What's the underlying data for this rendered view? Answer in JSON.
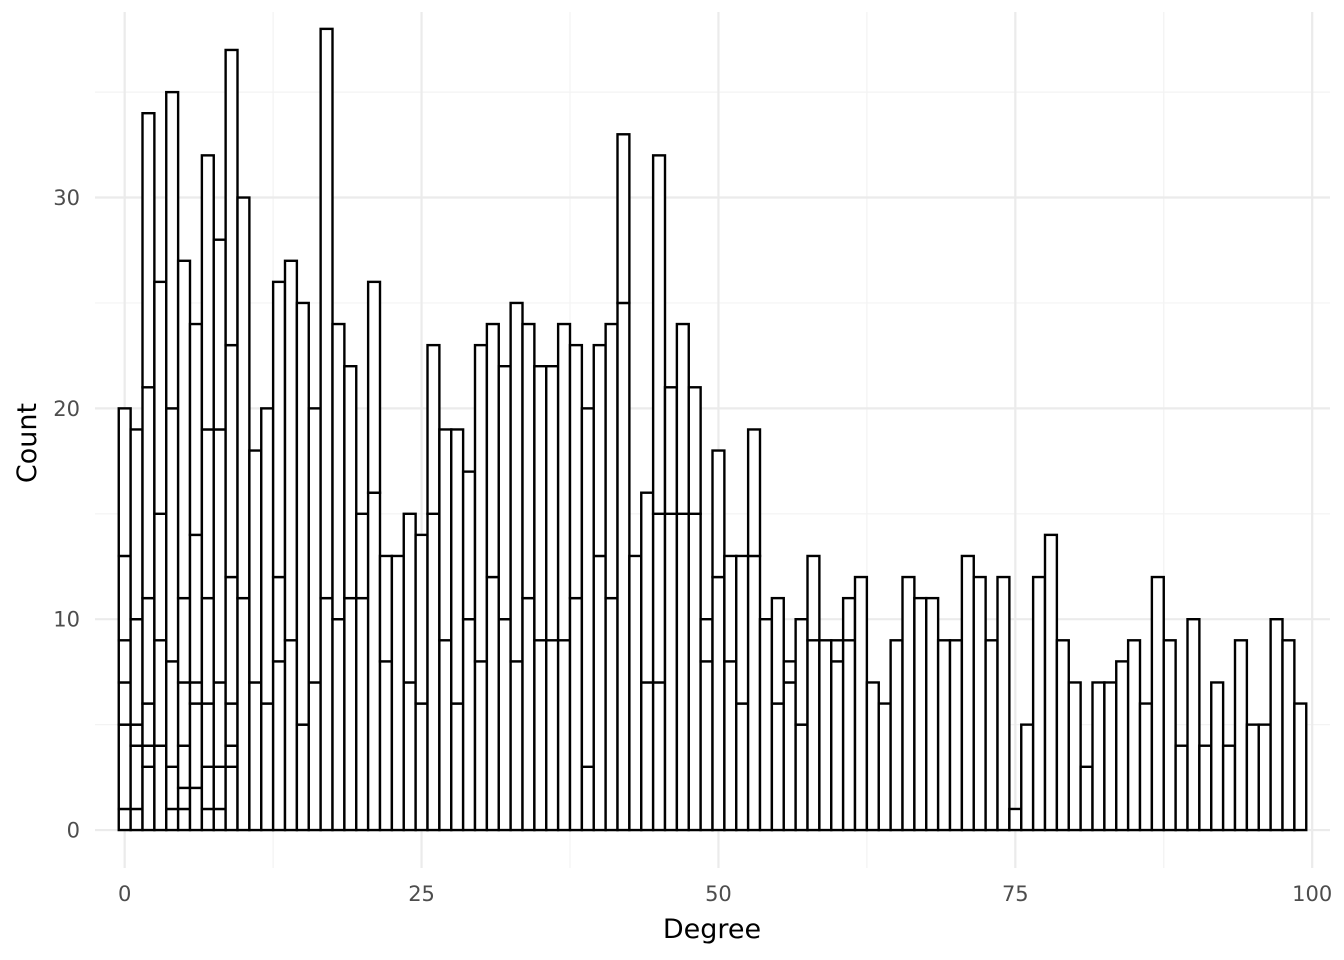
{
  "chart_data": {
    "type": "bar",
    "subtype": "histogram-stacked-outline",
    "title": "",
    "xlabel": "Degree",
    "ylabel": "Count",
    "xlim": [
      -2.5,
      101.5
    ],
    "ylim": [
      -1.8,
      38.8
    ],
    "x_ticks": [
      0,
      25,
      50,
      75,
      100
    ],
    "y_ticks": [
      0,
      10,
      20,
      30
    ],
    "grid": true,
    "legend": "none",
    "bar_fill": "#ffffff",
    "bar_stroke": "#000000",
    "bin_width": 1,
    "bins": [
      {
        "x": 0,
        "stack": [
          1,
          5,
          7,
          9,
          13,
          20
        ]
      },
      {
        "x": 1,
        "stack": [
          1,
          4,
          5,
          10,
          19
        ]
      },
      {
        "x": 2,
        "stack": [
          3,
          4,
          6,
          11,
          21,
          34
        ]
      },
      {
        "x": 3,
        "stack": [
          4,
          9,
          15,
          26
        ]
      },
      {
        "x": 4,
        "stack": [
          1,
          3,
          8,
          20,
          35
        ]
      },
      {
        "x": 5,
        "stack": [
          1,
          2,
          4,
          7,
          11,
          27
        ]
      },
      {
        "x": 6,
        "stack": [
          2,
          6,
          7,
          14,
          24
        ]
      },
      {
        "x": 7,
        "stack": [
          1,
          3,
          6,
          11,
          19,
          32
        ]
      },
      {
        "x": 8,
        "stack": [
          1,
          3,
          7,
          19,
          28
        ]
      },
      {
        "x": 9,
        "stack": [
          3,
          4,
          6,
          12,
          23,
          37
        ]
      },
      {
        "x": 10,
        "stack": [
          11,
          30
        ]
      },
      {
        "x": 11,
        "stack": [
          7,
          18
        ]
      },
      {
        "x": 12,
        "stack": [
          6,
          20
        ]
      },
      {
        "x": 13,
        "stack": [
          8,
          12,
          26
        ]
      },
      {
        "x": 14,
        "stack": [
          9,
          27
        ]
      },
      {
        "x": 15,
        "stack": [
          5,
          25
        ]
      },
      {
        "x": 16,
        "stack": [
          7,
          20
        ]
      },
      {
        "x": 17,
        "stack": [
          11,
          38
        ]
      },
      {
        "x": 18,
        "stack": [
          10,
          24
        ]
      },
      {
        "x": 19,
        "stack": [
          11,
          22
        ]
      },
      {
        "x": 20,
        "stack": [
          11,
          15
        ]
      },
      {
        "x": 21,
        "stack": [
          16,
          26
        ]
      },
      {
        "x": 22,
        "stack": [
          8,
          13
        ]
      },
      {
        "x": 23,
        "stack": [
          13
        ]
      },
      {
        "x": 24,
        "stack": [
          7,
          15
        ]
      },
      {
        "x": 25,
        "stack": [
          6,
          14
        ]
      },
      {
        "x": 26,
        "stack": [
          15,
          23
        ]
      },
      {
        "x": 27,
        "stack": [
          9,
          19
        ]
      },
      {
        "x": 28,
        "stack": [
          6,
          19
        ]
      },
      {
        "x": 29,
        "stack": [
          10,
          17
        ]
      },
      {
        "x": 30,
        "stack": [
          8,
          23
        ]
      },
      {
        "x": 31,
        "stack": [
          12,
          24
        ]
      },
      {
        "x": 32,
        "stack": [
          10,
          22
        ]
      },
      {
        "x": 33,
        "stack": [
          8,
          25
        ]
      },
      {
        "x": 34,
        "stack": [
          11,
          24
        ]
      },
      {
        "x": 35,
        "stack": [
          9,
          22
        ]
      },
      {
        "x": 36,
        "stack": [
          9,
          22
        ]
      },
      {
        "x": 37,
        "stack": [
          9,
          24
        ]
      },
      {
        "x": 38,
        "stack": [
          11,
          23
        ]
      },
      {
        "x": 39,
        "stack": [
          3,
          20
        ]
      },
      {
        "x": 40,
        "stack": [
          13,
          23
        ]
      },
      {
        "x": 41,
        "stack": [
          11,
          24
        ]
      },
      {
        "x": 42,
        "stack": [
          25,
          33
        ]
      },
      {
        "x": 43,
        "stack": [
          13
        ]
      },
      {
        "x": 44,
        "stack": [
          7,
          16
        ]
      },
      {
        "x": 45,
        "stack": [
          7,
          15,
          32
        ]
      },
      {
        "x": 46,
        "stack": [
          15,
          21
        ]
      },
      {
        "x": 47,
        "stack": [
          15,
          24
        ]
      },
      {
        "x": 48,
        "stack": [
          15,
          21
        ]
      },
      {
        "x": 49,
        "stack": [
          8,
          10
        ]
      },
      {
        "x": 50,
        "stack": [
          12,
          18
        ]
      },
      {
        "x": 51,
        "stack": [
          8,
          13
        ]
      },
      {
        "x": 52,
        "stack": [
          6,
          13
        ]
      },
      {
        "x": 53,
        "stack": [
          13,
          19
        ]
      },
      {
        "x": 54,
        "stack": [
          10
        ]
      },
      {
        "x": 55,
        "stack": [
          6,
          11
        ]
      },
      {
        "x": 56,
        "stack": [
          7,
          8
        ]
      },
      {
        "x": 57,
        "stack": [
          5,
          10
        ]
      },
      {
        "x": 58,
        "stack": [
          9,
          13
        ]
      },
      {
        "x": 59,
        "stack": [
          9
        ]
      },
      {
        "x": 60,
        "stack": [
          8,
          9
        ]
      },
      {
        "x": 61,
        "stack": [
          9,
          11
        ]
      },
      {
        "x": 62,
        "stack": [
          12
        ]
      },
      {
        "x": 63,
        "stack": [
          7
        ]
      },
      {
        "x": 64,
        "stack": [
          6
        ]
      },
      {
        "x": 65,
        "stack": [
          9
        ]
      },
      {
        "x": 66,
        "stack": [
          12
        ]
      },
      {
        "x": 67,
        "stack": [
          11
        ]
      },
      {
        "x": 68,
        "stack": [
          11
        ]
      },
      {
        "x": 69,
        "stack": [
          9
        ]
      },
      {
        "x": 70,
        "stack": [
          9
        ]
      },
      {
        "x": 71,
        "stack": [
          13
        ]
      },
      {
        "x": 72,
        "stack": [
          12
        ]
      },
      {
        "x": 73,
        "stack": [
          9
        ]
      },
      {
        "x": 74,
        "stack": [
          12
        ]
      },
      {
        "x": 75,
        "stack": [
          1
        ]
      },
      {
        "x": 76,
        "stack": [
          5
        ]
      },
      {
        "x": 77,
        "stack": [
          12
        ]
      },
      {
        "x": 78,
        "stack": [
          14
        ]
      },
      {
        "x": 79,
        "stack": [
          9
        ]
      },
      {
        "x": 80,
        "stack": [
          7
        ]
      },
      {
        "x": 81,
        "stack": [
          3
        ]
      },
      {
        "x": 82,
        "stack": [
          7
        ]
      },
      {
        "x": 83,
        "stack": [
          7
        ]
      },
      {
        "x": 84,
        "stack": [
          8
        ]
      },
      {
        "x": 85,
        "stack": [
          9
        ]
      },
      {
        "x": 86,
        "stack": [
          6
        ]
      },
      {
        "x": 87,
        "stack": [
          12
        ]
      },
      {
        "x": 88,
        "stack": [
          9
        ]
      },
      {
        "x": 89,
        "stack": [
          4
        ]
      },
      {
        "x": 90,
        "stack": [
          10
        ]
      },
      {
        "x": 91,
        "stack": [
          4
        ]
      },
      {
        "x": 92,
        "stack": [
          7
        ]
      },
      {
        "x": 93,
        "stack": [
          4
        ]
      },
      {
        "x": 94,
        "stack": [
          9
        ]
      },
      {
        "x": 95,
        "stack": [
          5
        ]
      },
      {
        "x": 96,
        "stack": [
          5
        ]
      },
      {
        "x": 97,
        "stack": [
          10
        ]
      },
      {
        "x": 98,
        "stack": [
          9
        ]
      },
      {
        "x": 99,
        "stack": [
          6
        ]
      }
    ]
  }
}
